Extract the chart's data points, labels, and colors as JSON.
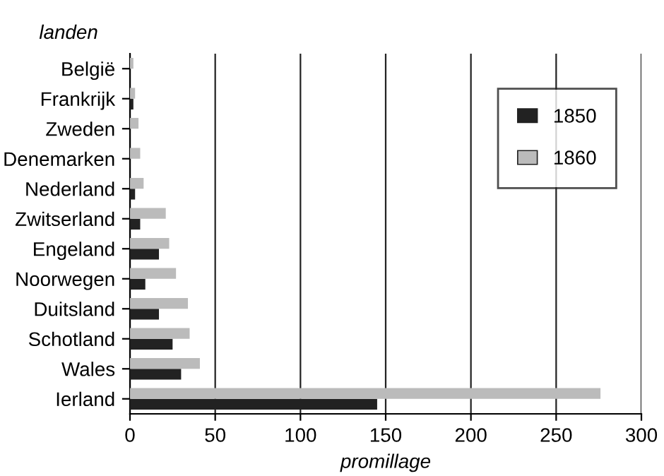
{
  "chart_data": {
    "type": "bar",
    "orientation": "horizontal",
    "ylabel": "landen",
    "xlabel": "promillage",
    "categories": [
      "België",
      "Frankrijk",
      "Zweden",
      "Denemarken",
      "Nederland",
      "Zwitserland",
      "Engeland",
      "Noorwegen",
      "Duitsland",
      "Schotland",
      "Wales",
      "Ierland"
    ],
    "series": [
      {
        "name": "1850",
        "color": "#222222",
        "values": [
          null,
          2,
          null,
          null,
          3,
          6,
          17,
          9,
          17,
          25,
          30,
          145
        ]
      },
      {
        "name": "1860",
        "color": "#bbbbbb",
        "values": [
          2,
          3,
          5,
          6,
          8,
          21,
          23,
          27,
          34,
          35,
          41,
          276
        ]
      }
    ],
    "xlim": [
      0,
      300
    ],
    "xticks": [
      0,
      50,
      100,
      150,
      200,
      250,
      300
    ],
    "grid": "x",
    "legend": "top right"
  }
}
